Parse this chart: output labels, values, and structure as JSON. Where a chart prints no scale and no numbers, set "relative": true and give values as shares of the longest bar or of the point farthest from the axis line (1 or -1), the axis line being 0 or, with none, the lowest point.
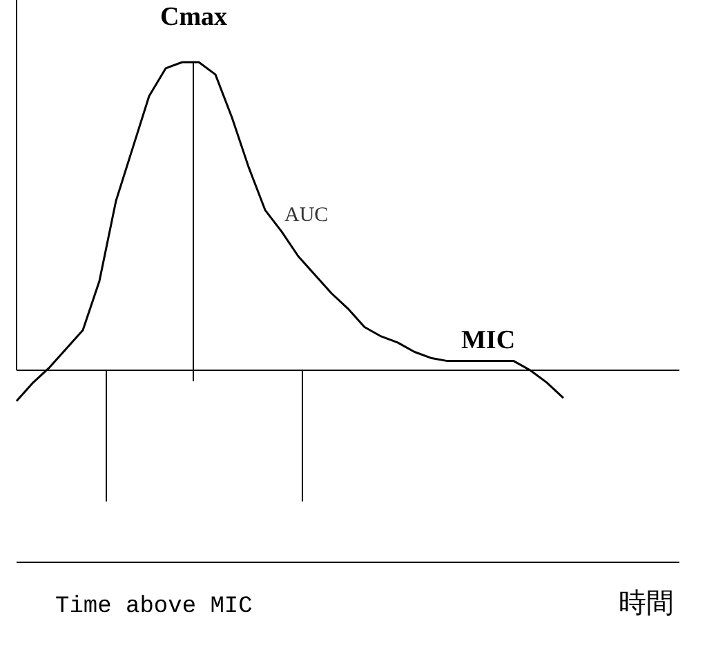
{
  "chart_data": {
    "type": "line",
    "relative": true,
    "categories": [
      null,
      null,
      null,
      null,
      null,
      null,
      null,
      null,
      null,
      null,
      null,
      null,
      null,
      null,
      null,
      null,
      null,
      null,
      null,
      null,
      null,
      null,
      null,
      null,
      null,
      null,
      null,
      null,
      null,
      null,
      null,
      null,
      null,
      null,
      null,
      null,
      null,
      null,
      null,
      null,
      null
    ],
    "series": [
      {
        "color": "#000000",
        "values": [
          -0.1,
          -0.04,
          0.01,
          0.07,
          0.13,
          0.29,
          0.55,
          0.72,
          0.89,
          0.98,
          1,
          1,
          0.96,
          0.82,
          0.66,
          0.52,
          0.45,
          0.37,
          0.31,
          0.25,
          0.2,
          0.14,
          0.11,
          0.09,
          0.06,
          0.04,
          0.03,
          0.03,
          0.03,
          0.03,
          0.03,
          0.0,
          -0.04,
          -0.09,
          null,
          null,
          null,
          null,
          null,
          null,
          null
        ]
      }
    ],
    "annotations": [
      "Cmax",
      "AUC",
      "MIC",
      "Time above MIC",
      "時間"
    ],
    "marker": "none",
    "line_style": "solid"
  }
}
